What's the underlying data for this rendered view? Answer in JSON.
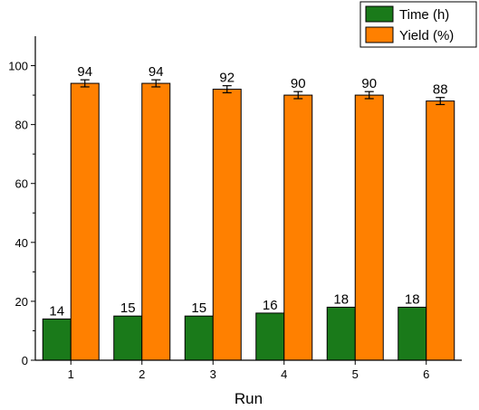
{
  "chart_data": {
    "type": "bar",
    "categories": [
      "1",
      "2",
      "3",
      "4",
      "5",
      "6"
    ],
    "series": [
      {
        "name": "Time (h)",
        "color": "#1a7a1a",
        "values": [
          14,
          15,
          15,
          16,
          18,
          18
        ],
        "labels": [
          "14",
          "15",
          "15",
          "16",
          "18",
          "18"
        ]
      },
      {
        "name": "Yield (%)",
        "color": "#ff8000",
        "values": [
          94,
          94,
          92,
          90,
          90,
          88
        ],
        "labels": [
          "94",
          "94",
          "92",
          "90",
          "90",
          "88"
        ],
        "errors": [
          1.2,
          1.2,
          1.2,
          1.2,
          1.2,
          1.2
        ]
      }
    ],
    "xlabel": "Run",
    "ylabel": "",
    "ylim": [
      0,
      110
    ],
    "yticks": [
      0,
      20,
      40,
      60,
      80,
      100
    ],
    "ytick_labels": [
      "0",
      "20",
      "40",
      "60",
      "80",
      "100"
    ],
    "grid": false,
    "legend_position": "top-right"
  }
}
